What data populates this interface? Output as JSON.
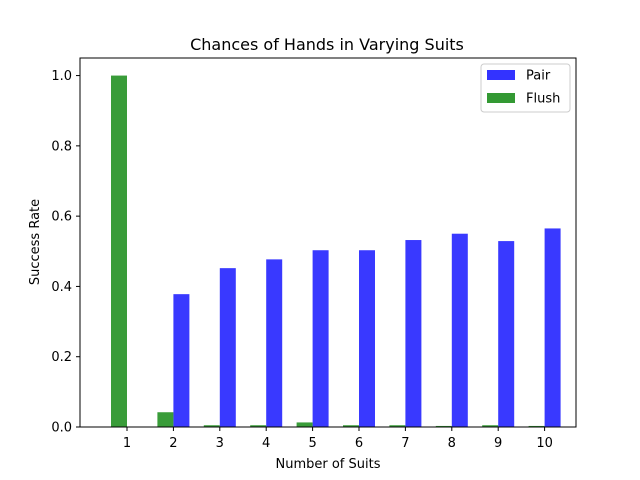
{
  "chart_data": {
    "type": "bar",
    "title": "Chances of Hands in Varying Suits",
    "xlabel": "Number of Suits",
    "ylabel": "Success Rate",
    "categories": [
      "1",
      "2",
      "3",
      "4",
      "5",
      "6",
      "7",
      "8",
      "9",
      "10"
    ],
    "series": [
      {
        "name": "Pair",
        "color": "#3333ff",
        "values": [
          0.0,
          0.378,
          0.452,
          0.477,
          0.503,
          0.503,
          0.532,
          0.55,
          0.529,
          0.565
        ]
      },
      {
        "name": "Flush",
        "color": "#339933",
        "values": [
          1.0,
          0.042,
          0.005,
          0.005,
          0.013,
          0.005,
          0.005,
          0.003,
          0.005,
          0.003
        ]
      }
    ],
    "ylim": [
      0,
      1.05
    ],
    "yticks": [
      "0.0",
      "0.2",
      "0.4",
      "0.6",
      "0.8",
      "1.0"
    ],
    "grid": false,
    "legend": "top-right"
  }
}
